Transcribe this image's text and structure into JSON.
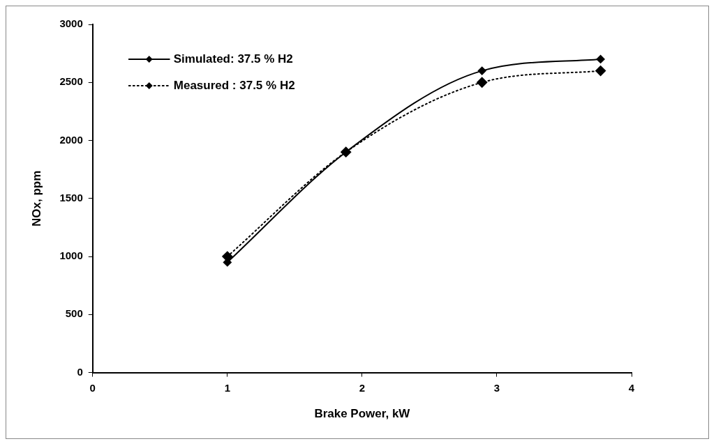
{
  "chart_data": {
    "type": "line",
    "xlabel": "Brake Power, kW",
    "ylabel": "NOx, ppm",
    "x": [
      1,
      1.88,
      2.89,
      3.77
    ],
    "series": [
      {
        "name": "Simulated: 37.5 % H2",
        "color": "#000000",
        "values": [
          950,
          1900,
          2600,
          2700
        ],
        "line_style": "solid"
      },
      {
        "name": "Measured : 37.5 % H2",
        "color": "#000000",
        "values": [
          1000,
          1900,
          2500,
          2600
        ],
        "line_style": "dotted"
      }
    ],
    "xlim": [
      0,
      4
    ],
    "xticks": [
      0,
      1,
      2,
      3,
      4
    ],
    "ylim": [
      0,
      3000
    ],
    "yticks": [
      0,
      500,
      1000,
      1500,
      2000,
      2500,
      3000
    ],
    "marker": "diamond",
    "legend": "top left"
  }
}
